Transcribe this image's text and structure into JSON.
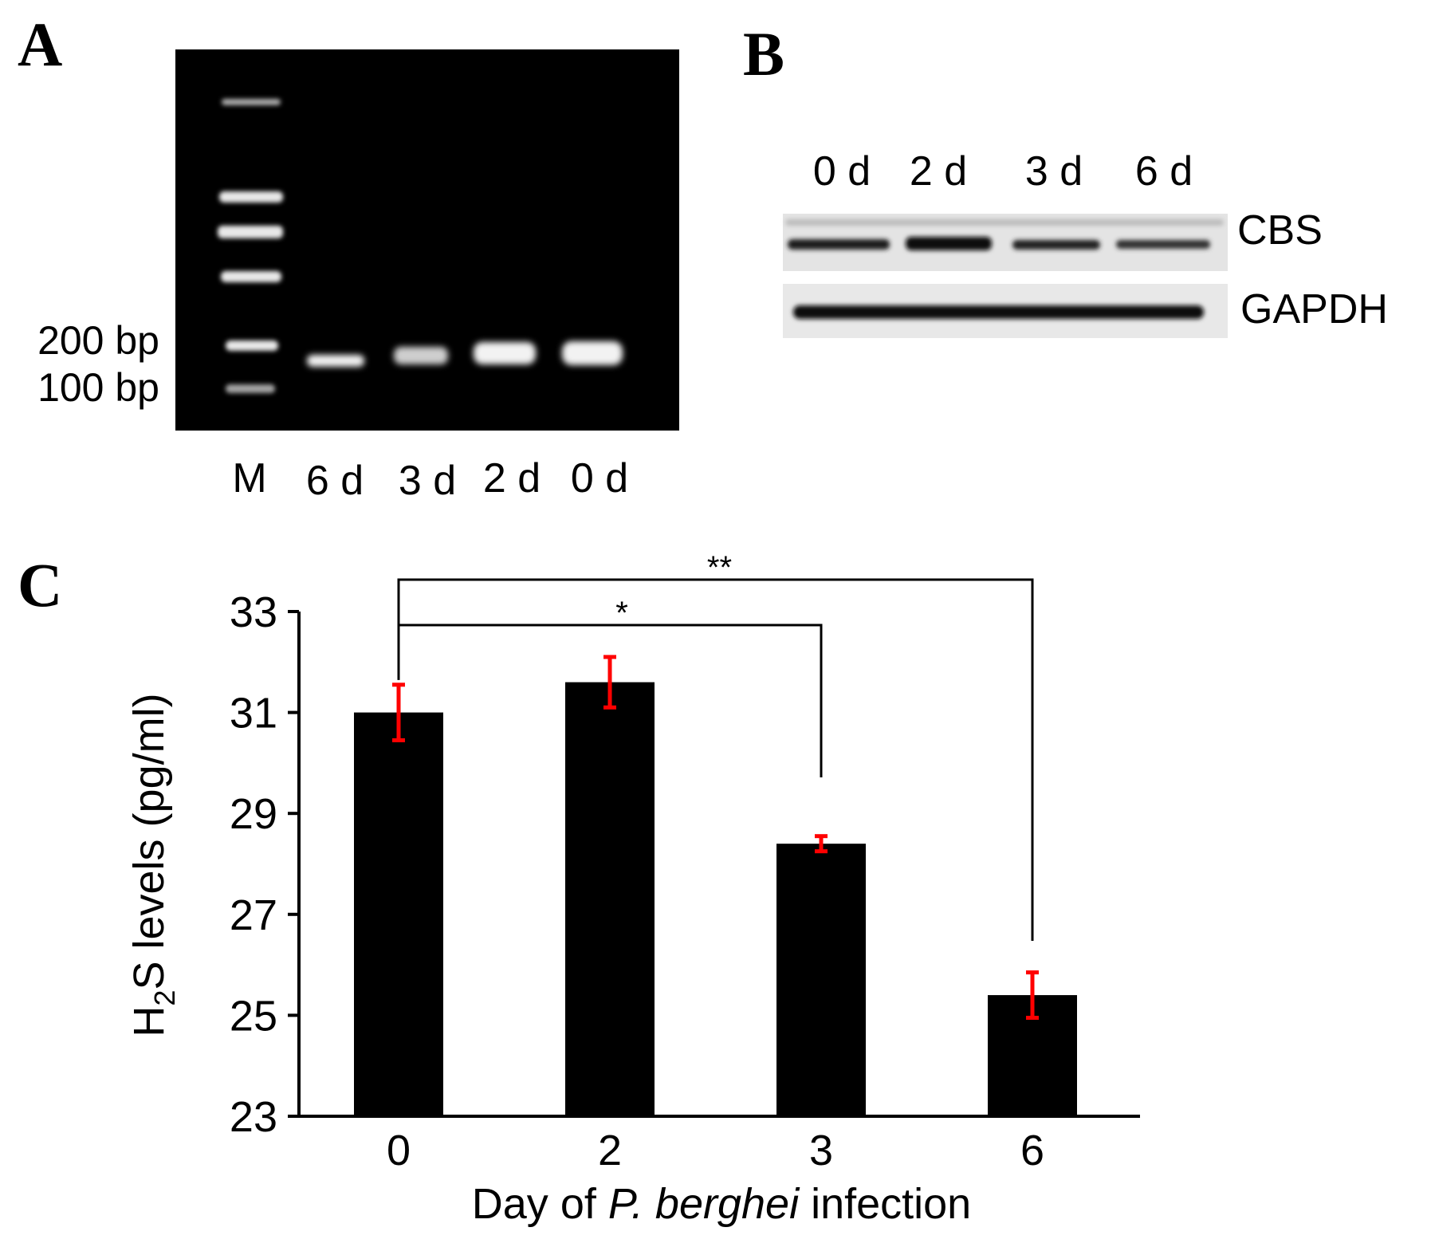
{
  "panels": {
    "a": {
      "letter": "A",
      "size_labels": [
        "200 bp",
        "100 bp"
      ],
      "lane_labels": [
        "M",
        "6 d",
        "3 d",
        "2 d",
        "0 d"
      ]
    },
    "b": {
      "letter": "B",
      "lane_labels": [
        "0 d",
        "2 d",
        "3 d",
        "6 d"
      ],
      "row_labels": [
        "CBS",
        "GAPDH"
      ]
    },
    "c": {
      "letter": "C"
    }
  },
  "colors": {
    "bar": "#000000",
    "error_bar": "#ff0000",
    "gel_background": "#000000",
    "gel_band": "#f2f2f2"
  },
  "chart_data": {
    "type": "bar",
    "categories": [
      "0",
      "2",
      "3",
      "6"
    ],
    "values": [
      31.0,
      31.6,
      28.4,
      25.4
    ],
    "errors": [
      0.55,
      0.5,
      0.15,
      0.45
    ],
    "xlabel_parts": [
      "Day of ",
      "P. berghei",
      " infection"
    ],
    "ylabel": "H2S levels (pg/ml)",
    "ylabel_parts": [
      "H",
      "2",
      "S levels (pg/ml)"
    ],
    "ylim": [
      23,
      33
    ],
    "yticks": [
      23,
      25,
      27,
      29,
      31,
      33
    ],
    "significance": [
      {
        "from": "0",
        "to": "3",
        "label": "*"
      },
      {
        "from": "0",
        "to": "6",
        "label": "**"
      }
    ],
    "grid": false,
    "legend": "none"
  }
}
